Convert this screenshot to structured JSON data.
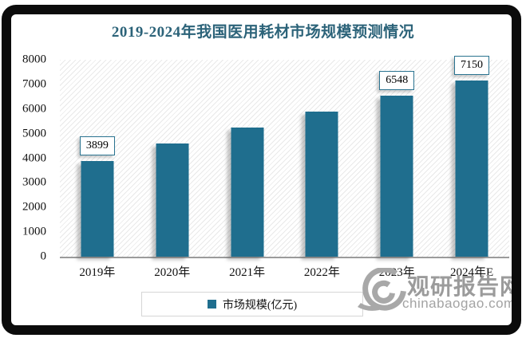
{
  "title": "2019-2024年我国医用耗材市场规模预测情况",
  "chart_data": {
    "type": "bar",
    "title": "2019-2024年我国医用耗材市场规模预测情况",
    "categories": [
      "2019年",
      "2020年",
      "2021年",
      "2022年",
      "2023年",
      "2024年E"
    ],
    "series": [
      {
        "name": "市场规模(亿元)",
        "values": [
          3899,
          4600,
          5250,
          5900,
          6548,
          7150
        ]
      }
    ],
    "data_labels_shown": [
      "3899",
      "",
      "",
      "",
      "6548",
      "7150"
    ],
    "ylim": [
      0,
      8000
    ],
    "yticks": [
      0,
      1000,
      2000,
      3000,
      4000,
      5000,
      6000,
      7000,
      8000
    ],
    "xlabel": "",
    "ylabel": "",
    "legend_entries": [
      "市场规模(亿元)"
    ],
    "legend_position": "bottom",
    "grid": false,
    "plot_background": "diagonal-hatch"
  },
  "legend": {
    "label": "市场规模(亿元)"
  },
  "watermark": {
    "brand": "观研报告网",
    "domain": "chinabaogao.com"
  },
  "colors": {
    "bar": "#1f6e8e",
    "title": "#2c6379",
    "data_label_border": "#2a7390",
    "axis_line": "#9b9b9b",
    "frame_border": "#0b0b0b",
    "watermark_gray": "#9b9b9b"
  }
}
